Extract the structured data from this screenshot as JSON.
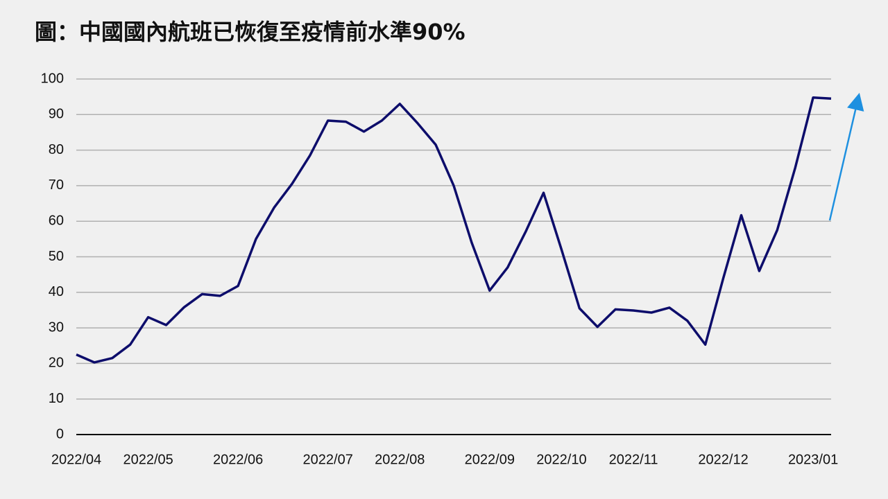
{
  "chart_data": {
    "type": "line",
    "title": "圖：中國國內航班已恢復至疫情前水準90%",
    "categories": [
      "2022/04",
      null,
      null,
      null,
      "2022/05",
      null,
      null,
      null,
      null,
      "2022/06",
      null,
      null,
      null,
      null,
      "2022/07",
      null,
      null,
      null,
      "2022/08",
      null,
      null,
      null,
      null,
      "2022/09",
      null,
      null,
      null,
      "2022/10",
      null,
      null,
      null,
      "2022/11",
      null,
      null,
      null,
      null,
      "2022/12",
      null,
      null,
      null,
      null,
      "2023/01",
      null
    ],
    "values": [
      22.5,
      20.3,
      21.5,
      25.3,
      33,
      30.8,
      35.8,
      39.5,
      39,
      41.8,
      55,
      63.8,
      70.5,
      78.5,
      88.3,
      88,
      85.2,
      88.3,
      93,
      87.5,
      81.5,
      70,
      54,
      40.5,
      47,
      57,
      68,
      52,
      35.5,
      30.3,
      35.2,
      34.9,
      34.3,
      35.7,
      32,
      25.3,
      44,
      61.7,
      46,
      57.5,
      75,
      94.8,
      94.5
    ],
    "color": "#0d0d6b",
    "ylim": [
      0,
      100
    ],
    "yticks": [
      0,
      10,
      20,
      30,
      40,
      50,
      60,
      70,
      80,
      90,
      100
    ],
    "grid": true
  }
}
